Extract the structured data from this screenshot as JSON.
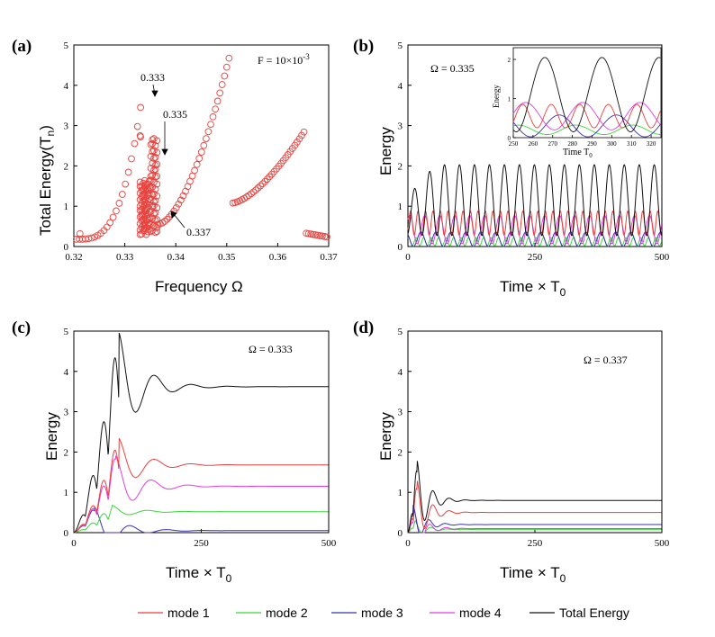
{
  "colors": {
    "mode1": "#e8413c",
    "mode2": "#38d838",
    "mode3": "#3a32b4",
    "mode4": "#e23de2",
    "total": "#111111",
    "markers": "#e8413c"
  },
  "legend": {
    "items": [
      {
        "label": "mode 1",
        "color": "#e8413c"
      },
      {
        "label": "mode 2",
        "color": "#38d838"
      },
      {
        "label": "mode 3",
        "color": "#3a32b4"
      },
      {
        "label": "mode 4",
        "color": "#e23de2"
      },
      {
        "label": "Total Energy",
        "color": "#111111"
      }
    ]
  },
  "chart_data": [
    {
      "panel": "(a)",
      "type": "scatter",
      "xlabel": "Frequency Ω",
      "ylabel_main": "Total Energy(T",
      "ylabel_sub": "n",
      "ylabel_end": ")",
      "xlim": [
        0.32,
        0.37
      ],
      "ylim": [
        0,
        5
      ],
      "xticks": [
        "0.32",
        "0.33",
        "0.34",
        "0.35",
        "0.36",
        "0.37"
      ],
      "yticks": [
        "0",
        "1",
        "2",
        "3",
        "4",
        "5"
      ],
      "annotation_force": "F = 10×10",
      "annotation_force_exp": "-3",
      "annotations": [
        {
          "text": "0.333",
          "x": 0.333,
          "y": 3.62
        },
        {
          "text": "0.335",
          "x": 0.335,
          "y": 1.95
        },
        {
          "text": "0.337",
          "x": 0.335,
          "y": 0.62
        }
      ],
      "segments": [
        {
          "x_start": 0.3205,
          "x_end": 0.3335,
          "y_start": 0.25,
          "y_end": 3.62,
          "peak": 3.62,
          "low_branch": true
        },
        {
          "x_start": 0.337,
          "x_end": 0.3508,
          "y_start": 0.55,
          "y_end": 4.85
        },
        {
          "x_start": 0.3512,
          "x_end": 0.3652,
          "y_start": 1.08,
          "y_end": 2.85
        },
        {
          "x_start": 0.3655,
          "x_end": 0.37,
          "y_start": 0.33,
          "y_end": 0.22
        }
      ]
    },
    {
      "panel": "(b)",
      "type": "line",
      "xlabel": "Time × T",
      "xlabel_sub": "0",
      "ylabel": "Energy",
      "xlim": [
        0,
        500
      ],
      "ylim": [
        0,
        5
      ],
      "xticks": [
        "0",
        "250",
        "500"
      ],
      "yticks": [
        "0",
        "1",
        "2",
        "3",
        "4",
        "5"
      ],
      "annotation": "Ω = 0.335",
      "period": 29.5,
      "series": [
        {
          "name": "Total Energy",
          "mean": 1.15,
          "amplitude": 0.9
        },
        {
          "name": "mode 1",
          "mean": 0.6,
          "amplitude": 0.3
        },
        {
          "name": "mode 4",
          "mean": 0.45,
          "amplitude": 0.35
        },
        {
          "name": "mode 2",
          "mean": 0.15,
          "amplitude": 0.1
        },
        {
          "name": "mode 3",
          "mean": 0.2,
          "amplitude": 0.2
        }
      ],
      "inset": {
        "xlabel": "Time T",
        "xlabel_sub": "0",
        "ylabel": "Energy",
        "xlim": [
          250,
          325
        ],
        "ylim": [
          0,
          2.3
        ],
        "xticks": [
          "250",
          "260",
          "270",
          "280",
          "290",
          "300",
          "310",
          "320"
        ],
        "yticks": [
          "0",
          "1",
          "2"
        ]
      }
    },
    {
      "panel": "(c)",
      "type": "line",
      "xlabel": "Time × T",
      "xlabel_sub": "0",
      "ylabel": "Energy",
      "xlim": [
        0,
        500
      ],
      "ylim": [
        0,
        5
      ],
      "xticks": [
        "0",
        "250",
        "500"
      ],
      "yticks": [
        "0",
        "1",
        "2",
        "3",
        "4",
        "5"
      ],
      "annotation": "Ω = 0.333",
      "series": [
        {
          "name": "Total Energy",
          "steady": 3.62,
          "peak": 4.98,
          "peak_t": 88
        },
        {
          "name": "mode 1",
          "steady": 1.68,
          "peak": 2.35,
          "peak_t": 88
        },
        {
          "name": "mode 4",
          "steady": 1.15,
          "peak": 1.9,
          "peak_t": 82
        },
        {
          "name": "mode 2",
          "steady": 0.52,
          "peak": 0.68,
          "peak_t": 75
        },
        {
          "name": "mode 3",
          "steady": 0.05,
          "peak": 0.65,
          "peak_t": 40
        }
      ]
    },
    {
      "panel": "(d)",
      "type": "line",
      "xlabel": "Time × T",
      "xlabel_sub": "0",
      "ylabel": "Energy",
      "xlim": [
        0,
        500
      ],
      "ylim": [
        0,
        5
      ],
      "xticks": [
        "0",
        "250",
        "500"
      ],
      "yticks": [
        "0",
        "1",
        "2",
        "3",
        "4",
        "5"
      ],
      "annotation": "Ω = 0.337",
      "series": [
        {
          "name": "Total Energy",
          "steady": 0.8,
          "peak": 1.8,
          "peak_t": 18
        },
        {
          "name": "mode 1",
          "steady": 0.5,
          "peak": 1.3,
          "peak_t": 18
        },
        {
          "name": "mode 4",
          "steady": 0.1,
          "peak": 0.55,
          "peak_t": 12
        },
        {
          "name": "mode 3",
          "steady": 0.2,
          "peak": 0.7,
          "peak_t": 10
        },
        {
          "name": "mode 2",
          "steady": 0.08,
          "peak": 0.3,
          "peak_t": 14
        }
      ]
    }
  ]
}
